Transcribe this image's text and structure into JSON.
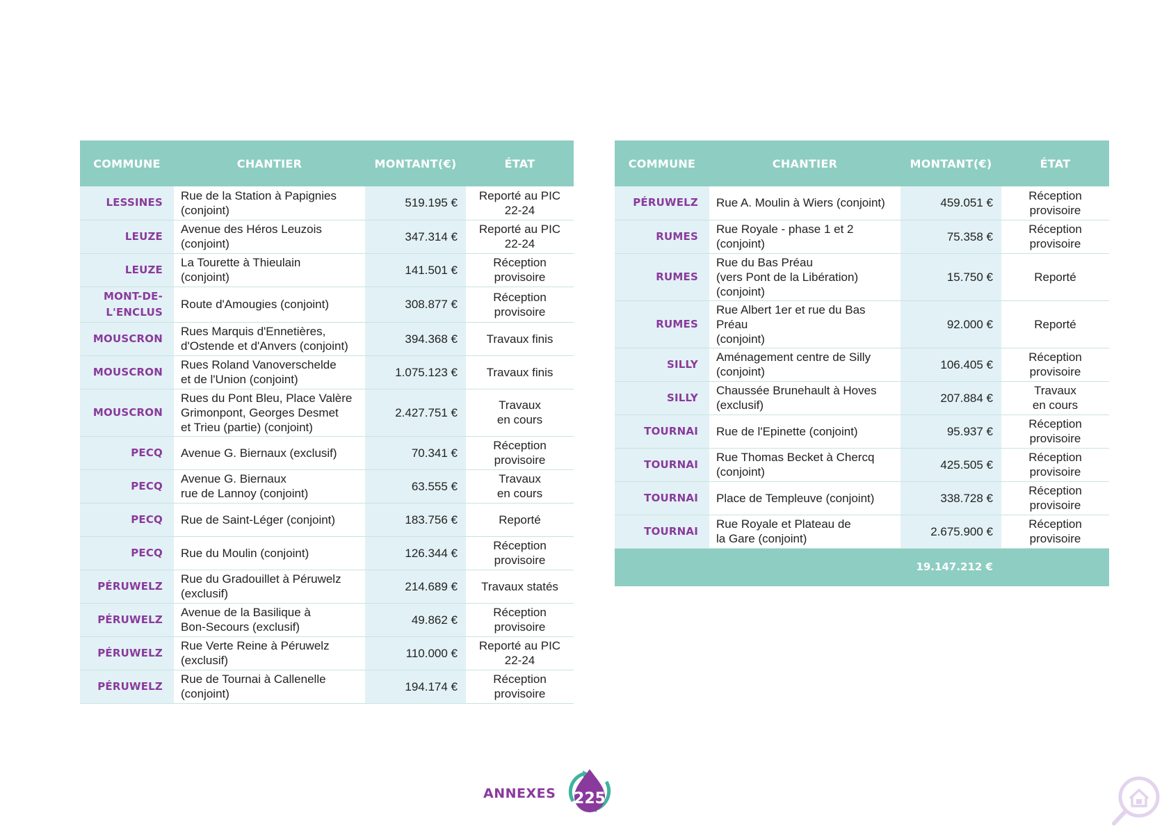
{
  "headers": {
    "commune": "COMMUNE",
    "chantier": "CHANTIER",
    "montant_line1": "MONTANT",
    "montant_line2": "(€)",
    "etat": "ÉTAT"
  },
  "left_rows": [
    {
      "commune": [
        "LESSINES"
      ],
      "chantier": [
        "Rue de la Station à Papignies",
        "(conjoint)"
      ],
      "montant": "519.195 €",
      "etat": [
        "Reporté au PIC",
        "22-24"
      ]
    },
    {
      "commune": [
        "LEUZE"
      ],
      "chantier": [
        "Avenue des Héros Leuzois",
        "(conjoint)"
      ],
      "montant": "347.314 €",
      "etat": [
        "Reporté au PIC",
        "22-24"
      ]
    },
    {
      "commune": [
        "LEUZE"
      ],
      "chantier": [
        "La Tourette à Thieulain",
        "(conjoint)"
      ],
      "montant": "141.501 €",
      "etat": [
        "Réception",
        "provisoire"
      ]
    },
    {
      "commune": [
        "MONT-DE-",
        "L'ENCLUS"
      ],
      "chantier": [
        "Route d'Amougies (conjoint)"
      ],
      "montant": "308.877 €",
      "etat": [
        "Réception",
        "provisoire"
      ]
    },
    {
      "commune": [
        "MOUSCRON"
      ],
      "chantier": [
        "Rues Marquis d'Ennetières,",
        "d'Ostende et d'Anvers (conjoint)"
      ],
      "montant": "394.368 €",
      "etat": [
        "Travaux finis"
      ]
    },
    {
      "commune": [
        "MOUSCRON"
      ],
      "chantier": [
        "Rues Roland Vanoverschelde",
        "et de l'Union (conjoint)"
      ],
      "montant": "1.075.123 €",
      "etat": [
        "Travaux finis"
      ]
    },
    {
      "commune": [
        "MOUSCRON"
      ],
      "chantier": [
        "Rues du Pont Bleu, Place Valère",
        "Grimonpont, Georges Desmet",
        "et Trieu (partie) (conjoint)"
      ],
      "montant": "2.427.751 €",
      "etat": [
        "Travaux",
        "en cours"
      ]
    },
    {
      "commune": [
        "PECQ"
      ],
      "chantier": [
        "Avenue G. Biernaux (exclusif)"
      ],
      "montant": "70.341 €",
      "etat": [
        "Réception",
        "provisoire"
      ]
    },
    {
      "commune": [
        "PECQ"
      ],
      "chantier": [
        "Avenue G. Biernaux",
        "rue de Lannoy (conjoint)"
      ],
      "montant": "63.555 €",
      "etat": [
        "Travaux",
        "en cours"
      ]
    },
    {
      "commune": [
        "PECQ"
      ],
      "chantier": [
        "Rue de Saint-Léger (conjoint)"
      ],
      "montant": "183.756 €",
      "etat": [
        "Reporté"
      ]
    },
    {
      "commune": [
        "PECQ"
      ],
      "chantier": [
        "Rue du Moulin (conjoint)"
      ],
      "montant": "126.344 €",
      "etat": [
        "Réception",
        "provisoire"
      ]
    },
    {
      "commune": [
        "PÉRUWELZ"
      ],
      "chantier": [
        "Rue du Gradouillet à Péruwelz",
        "(exclusif)"
      ],
      "montant": "214.689 €",
      "etat": [
        "Travaux statés"
      ]
    },
    {
      "commune": [
        "PÉRUWELZ"
      ],
      "chantier": [
        "Avenue de la Basilique à",
        "Bon-Secours (exclusif)"
      ],
      "montant": "49.862 €",
      "etat": [
        "Réception",
        "provisoire"
      ]
    },
    {
      "commune": [
        "PÉRUWELZ"
      ],
      "chantier": [
        "Rue Verte Reine à Péruwelz",
        "(exclusif)"
      ],
      "montant": "110.000 €",
      "etat": [
        "Reporté au PIC",
        "22-24"
      ]
    },
    {
      "commune": [
        "PÉRUWELZ"
      ],
      "chantier": [
        "Rue de Tournai à Callenelle",
        "(conjoint)"
      ],
      "montant": "194.174 €",
      "etat": [
        "Réception",
        "provisoire"
      ]
    }
  ],
  "right_rows": [
    {
      "commune": [
        "PÉRUWELZ"
      ],
      "chantier": [
        "Rue A. Moulin à Wiers (conjoint)"
      ],
      "montant": "459.051 €",
      "etat": [
        "Réception",
        "provisoire"
      ]
    },
    {
      "commune": [
        "RUMES"
      ],
      "chantier": [
        "Rue Royale - phase 1 et 2",
        "(conjoint)"
      ],
      "montant": "75.358 €",
      "etat": [
        "Réception",
        "provisoire"
      ]
    },
    {
      "commune": [
        "RUMES"
      ],
      "chantier": [
        "Rue du Bas Préau",
        "(vers Pont de la Libération)",
        "(conjoint)"
      ],
      "montant": "15.750 €",
      "etat": [
        "Reporté"
      ]
    },
    {
      "commune": [
        "RUMES"
      ],
      "chantier": [
        "Rue Albert 1er et rue du Bas Préau",
        "(conjoint)"
      ],
      "montant": "92.000 €",
      "etat": [
        "Reporté"
      ]
    },
    {
      "commune": [
        "SILLY"
      ],
      "chantier": [
        "Aménagement centre de Silly",
        "(conjoint)"
      ],
      "montant": "106.405 €",
      "etat": [
        "Réception",
        "provisoire"
      ]
    },
    {
      "commune": [
        "SILLY"
      ],
      "chantier": [
        "Chaussée Brunehault à Hoves",
        "(exclusif)"
      ],
      "montant": "207.884 €",
      "etat": [
        "Travaux",
        "en cours"
      ]
    },
    {
      "commune": [
        "TOURNAI"
      ],
      "chantier": [
        "Rue de l'Epinette (conjoint)"
      ],
      "montant": "95.937 €",
      "etat": [
        "Réception",
        "provisoire"
      ]
    },
    {
      "commune": [
        "TOURNAI"
      ],
      "chantier": [
        "Rue Thomas Becket à Chercq",
        "(conjoint)"
      ],
      "montant": "425.505 €",
      "etat": [
        "Réception",
        "provisoire"
      ]
    },
    {
      "commune": [
        "TOURNAI"
      ],
      "chantier": [
        "Place de Templeuve (conjoint)"
      ],
      "montant": "338.728 €",
      "etat": [
        "Réception",
        "provisoire"
      ]
    },
    {
      "commune": [
        "TOURNAI"
      ],
      "chantier": [
        "Rue Royale et Plateau de",
        "la Gare (conjoint)"
      ],
      "montant": "2.675.900 €",
      "etat": [
        "Réception",
        "provisoire"
      ]
    }
  ],
  "total": "19.147.212 €",
  "footer": {
    "label": "ANNEXES",
    "page_number": "225"
  },
  "icons": {
    "page_badge": "water-drop-badge-icon",
    "corner": "magnifier-house-icon"
  },
  "colors": {
    "header_bg": "#8ecdc2",
    "commune_text": "#8a3a9c",
    "light_col_bg": "#e2f1f5",
    "accent_purple": "#8a3a9c",
    "accent_teal": "#3fb3a0"
  }
}
